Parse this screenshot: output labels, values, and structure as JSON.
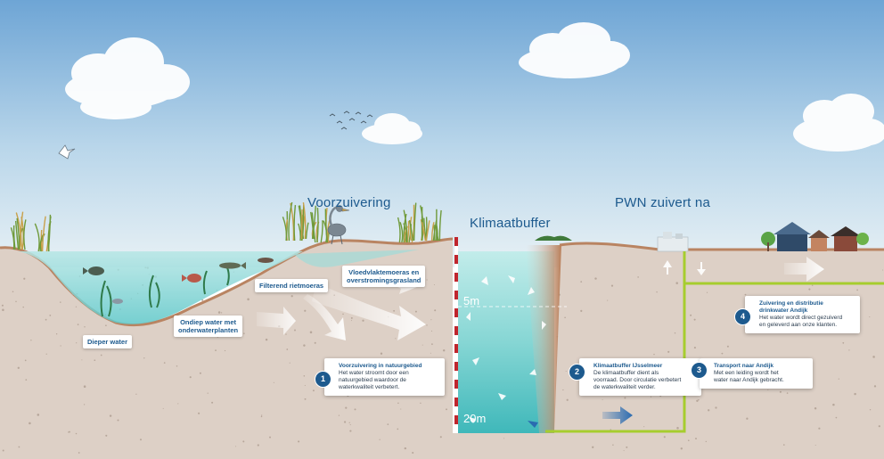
{
  "headings": {
    "voorzuivering": "Voorzuivering",
    "klimaatbuffer": "Klimaatbuffer",
    "pwn": "PWN zuivert na"
  },
  "zones": {
    "dieper_water": "Dieper water",
    "ondiep_water": "Ondiep water met\nonderwaterplanten",
    "filterend": "Filterend rietmoeras",
    "vloedvlakte": "Vloedvlaktemoeras en\noverstromingsgrasland"
  },
  "depth_marks": [
    "5m",
    "20m"
  ],
  "steps": [
    {
      "number": "1",
      "title": "Voorzuivering in natuurgebied",
      "body": "Het water stroomt door een\nnatuurgebied waardoor de\nwaterkwaliteit verbetert."
    },
    {
      "number": "2",
      "title": "Klimaatbuffer IJsselmeer",
      "body": "De klimaatbuffer dient als\nvoorraad. Door circulatie verbetert\nde waterkwaliteit verder."
    },
    {
      "number": "3",
      "title": "Transport naar Andijk",
      "body": "Met een leiding wordt het\nwater naar Andijk gebracht."
    },
    {
      "number": "4",
      "title": "Zuivering en distributie\ndrinkwater Andijk",
      "body": "Het water wordt direct gezuiverd\nen geleverd aan onze klanten."
    }
  ],
  "colors": {
    "sky_top": "#6fa6d6",
    "sky_bottom": "#e6f0f5",
    "soil": "#ddd0c6",
    "soil_edge": "#b98462",
    "water": "#7fd3d6",
    "accent": "#1d5a8e",
    "pipe": "#a6cd2e"
  }
}
